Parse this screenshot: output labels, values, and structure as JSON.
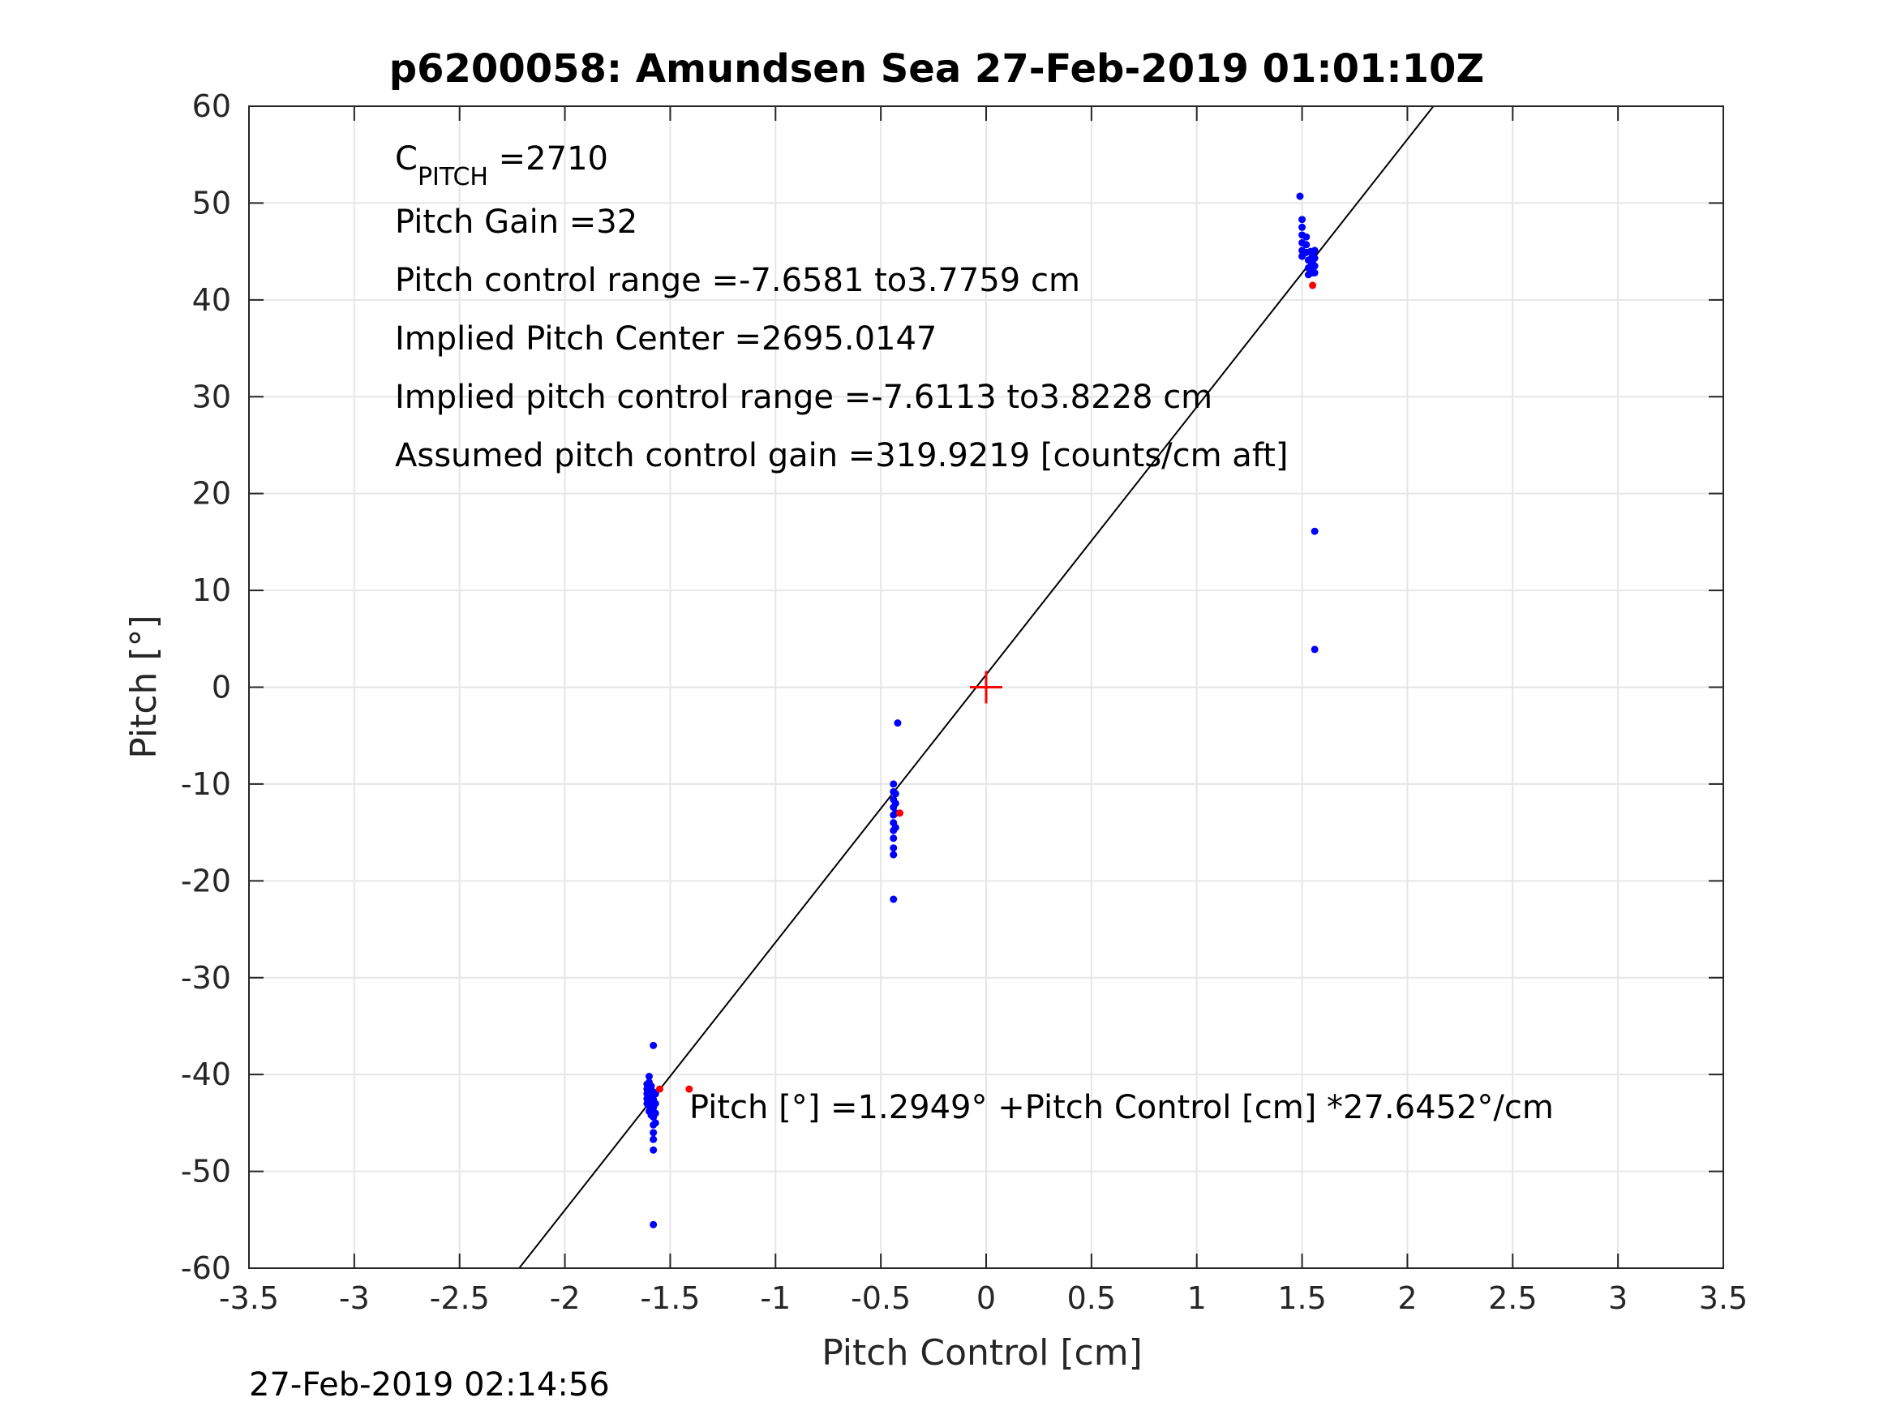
{
  "chart_data": {
    "type": "scatter",
    "title": "p6200058: Amundsen Sea 27-Feb-2019 01:01:10Z",
    "xlabel": "Pitch Control [cm]",
    "ylabel": "Pitch [°]",
    "xlim": [
      -3.5,
      3.5
    ],
    "ylim": [
      -60,
      60
    ],
    "xticks": [
      -3.5,
      -3,
      -2.5,
      -2,
      -1.5,
      -1,
      -0.5,
      0,
      0.5,
      1,
      1.5,
      2,
      2.5,
      3,
      3.5
    ],
    "xtick_labels": [
      "-3.5",
      "-3",
      "-2.5",
      "-2",
      "-1.5",
      "-1",
      "-0.5",
      "0",
      "0.5",
      "1",
      "1.5",
      "2",
      "2.5",
      "3",
      "3.5"
    ],
    "yticks": [
      -60,
      -50,
      -40,
      -30,
      -20,
      -10,
      0,
      10,
      20,
      30,
      40,
      50,
      60
    ],
    "ytick_labels": [
      "-60",
      "-50",
      "-40",
      "-30",
      "-20",
      "-10",
      "0",
      "10",
      "20",
      "30",
      "40",
      "50",
      "60"
    ],
    "grid": true,
    "colors": {
      "observed": "#0000ff",
      "highlighted": "#ff0000",
      "fit_line": "#000000",
      "center_marker": "#ff0000",
      "grid": "#e6e6e6"
    },
    "fit_line": {
      "intercept": 1.2949,
      "slope": 27.6452
    },
    "center_marker": {
      "x": 0,
      "y": 0,
      "symbol": "plus"
    },
    "series": [
      {
        "color": "#0000ff",
        "points": [
          [
            -1.61,
            -41.0
          ],
          [
            -1.61,
            -41.5
          ],
          [
            -1.61,
            -42.0
          ],
          [
            -1.61,
            -42.5
          ],
          [
            -1.61,
            -43.0
          ],
          [
            -1.6,
            -40.2
          ],
          [
            -1.6,
            -40.8
          ],
          [
            -1.6,
            -41.6
          ],
          [
            -1.6,
            -42.4
          ],
          [
            -1.6,
            -43.2
          ],
          [
            -1.6,
            -43.8
          ],
          [
            -1.59,
            -41.2
          ],
          [
            -1.59,
            -42.0
          ],
          [
            -1.59,
            -42.8
          ],
          [
            -1.59,
            -43.6
          ],
          [
            -1.59,
            -44.2
          ],
          [
            -1.58,
            -37.0
          ],
          [
            -1.58,
            -41.8
          ],
          [
            -1.58,
            -42.6
          ],
          [
            -1.58,
            -43.4
          ],
          [
            -1.58,
            -44.4
          ],
          [
            -1.58,
            -45.2
          ],
          [
            -1.58,
            -46.0
          ],
          [
            -1.58,
            -46.7
          ],
          [
            -1.58,
            -47.8
          ],
          [
            -1.58,
            -55.5
          ],
          [
            -1.57,
            -42.0
          ],
          [
            -1.57,
            -43.0
          ],
          [
            -1.57,
            -44.0
          ],
          [
            -1.57,
            -45.0
          ],
          [
            -0.44,
            -10.0
          ],
          [
            -0.44,
            -10.8
          ],
          [
            -0.44,
            -11.6
          ],
          [
            -0.44,
            -12.4
          ],
          [
            -0.44,
            -13.2
          ],
          [
            -0.44,
            -14.0
          ],
          [
            -0.44,
            -14.8
          ],
          [
            -0.44,
            -15.6
          ],
          [
            -0.44,
            -16.6
          ],
          [
            -0.44,
            -17.3
          ],
          [
            -0.44,
            -21.9
          ],
          [
            -0.43,
            -11.0
          ],
          [
            -0.43,
            -12.0
          ],
          [
            -0.43,
            -13.0
          ],
          [
            -0.43,
            -14.5
          ],
          [
            -0.42,
            -3.7
          ],
          [
            1.49,
            50.7
          ],
          [
            1.5,
            48.3
          ],
          [
            1.5,
            47.5
          ],
          [
            1.5,
            46.7
          ],
          [
            1.5,
            45.9
          ],
          [
            1.5,
            45.1
          ],
          [
            1.5,
            44.5
          ],
          [
            1.52,
            46.5
          ],
          [
            1.52,
            45.7
          ],
          [
            1.52,
            44.9
          ],
          [
            1.53,
            44.1
          ],
          [
            1.53,
            43.3
          ],
          [
            1.53,
            42.6
          ],
          [
            1.54,
            45.0
          ],
          [
            1.54,
            44.2
          ],
          [
            1.54,
            43.4
          ],
          [
            1.55,
            42.8
          ],
          [
            1.55,
            44.6
          ],
          [
            1.55,
            43.8
          ],
          [
            1.56,
            45.1
          ],
          [
            1.56,
            44.3
          ],
          [
            1.56,
            43.5
          ],
          [
            1.56,
            42.8
          ],
          [
            1.56,
            16.1
          ],
          [
            1.56,
            3.9
          ]
        ]
      },
      {
        "color": "#ff0000",
        "points": [
          [
            -1.55,
            -41.5
          ],
          [
            -1.41,
            -41.5
          ],
          [
            -0.41,
            -13.0
          ],
          [
            1.55,
            41.5
          ]
        ]
      }
    ],
    "annotations": {
      "c_pitch_symbol": "C",
      "c_pitch_subscript": "PITCH",
      "c_pitch_value": " =2710",
      "pitch_gain": "Pitch Gain =32",
      "pitch_control_range": "Pitch control range =-7.6581 to3.7759 cm",
      "implied_pitch_center": "Implied Pitch Center =2695.0147",
      "implied_pitch_control_range": "Implied pitch control range =-7.6113 to3.8228 cm",
      "assumed_pitch_control_gain": "Assumed pitch control gain =319.9219 [counts/cm aft]",
      "fit_equation": "Pitch [°] =1.2949° +Pitch Control [cm] *27.6452°/cm"
    },
    "timestamp": "27-Feb-2019 02:14:56"
  }
}
